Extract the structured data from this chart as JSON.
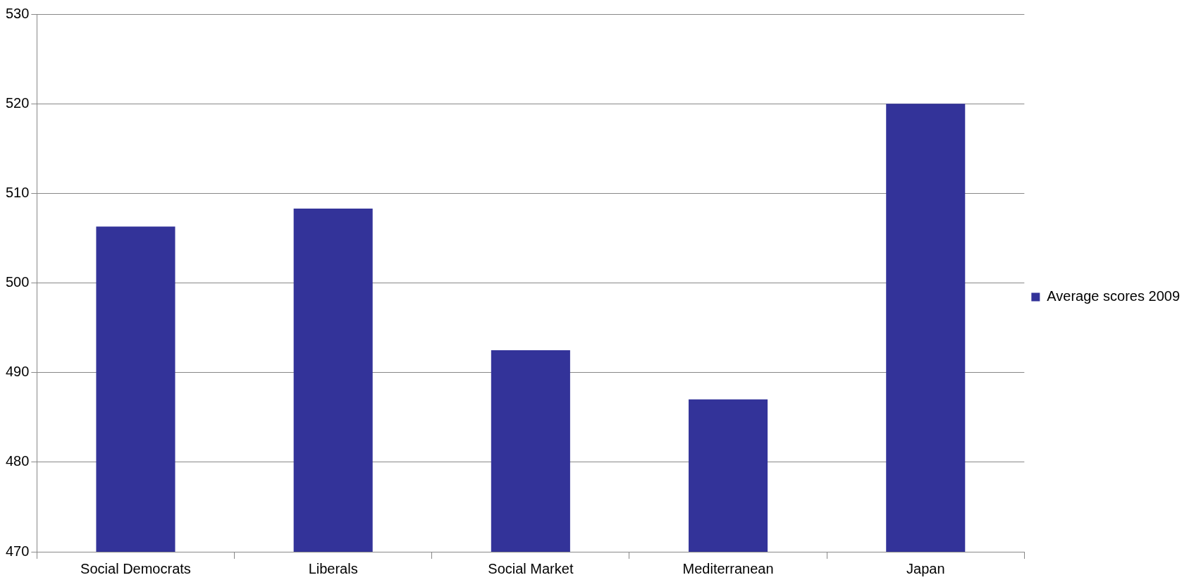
{
  "chart_data": {
    "type": "bar",
    "categories": [
      "Social Democrats",
      "Liberals",
      "Social Market",
      "Mediterranean",
      "Japan"
    ],
    "series": [
      {
        "name": "Average scores 2009",
        "color": "#333399",
        "values": [
          506.3,
          508.3,
          492.5,
          487.0,
          520.0
        ]
      }
    ],
    "ylim": [
      470,
      530
    ],
    "yticks": [
      470,
      480,
      490,
      500,
      510,
      520,
      530
    ],
    "grid": "y",
    "legend": "right"
  }
}
